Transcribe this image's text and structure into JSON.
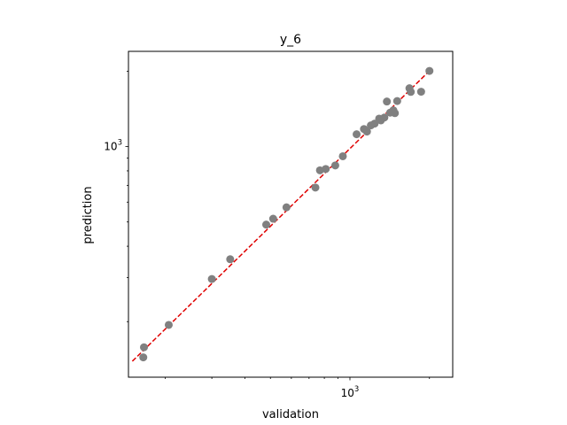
{
  "chart_data": {
    "type": "scatter",
    "title": "y_6",
    "xlabel": "validation",
    "ylabel": "prediction",
    "x_scale": "log",
    "y_scale": "log",
    "xlim": [
      145,
      2450
    ],
    "ylim": [
      120,
      2400
    ],
    "grid": false,
    "x_major_ticks": [
      {
        "value": 1000,
        "label_base": "10",
        "label_exp": "3"
      }
    ],
    "y_major_ticks": [
      {
        "value": 1000,
        "label_base": "10",
        "label_exp": "3"
      }
    ],
    "x_minor_ticks": [
      200,
      300,
      400,
      500,
      600,
      700,
      800,
      900,
      2000
    ],
    "y_minor_ticks": [
      200,
      300,
      400,
      500,
      600,
      700,
      800,
      900,
      2000
    ],
    "marker_color": "#808080",
    "reference_line": {
      "style": "dashed",
      "color": "#e00000",
      "x": [
        150,
        2000
      ],
      "y": [
        139,
        2005
      ]
    },
    "points": [
      {
        "x": 165,
        "y": 144
      },
      {
        "x": 166,
        "y": 158
      },
      {
        "x": 206,
        "y": 194
      },
      {
        "x": 300,
        "y": 296
      },
      {
        "x": 352,
        "y": 355
      },
      {
        "x": 482,
        "y": 488
      },
      {
        "x": 512,
        "y": 515
      },
      {
        "x": 575,
        "y": 572
      },
      {
        "x": 740,
        "y": 686
      },
      {
        "x": 770,
        "y": 804
      },
      {
        "x": 810,
        "y": 814
      },
      {
        "x": 880,
        "y": 841
      },
      {
        "x": 940,
        "y": 915
      },
      {
        "x": 1060,
        "y": 1120
      },
      {
        "x": 1130,
        "y": 1175
      },
      {
        "x": 1160,
        "y": 1148
      },
      {
        "x": 1200,
        "y": 1215
      },
      {
        "x": 1240,
        "y": 1235
      },
      {
        "x": 1290,
        "y": 1293
      },
      {
        "x": 1310,
        "y": 1272
      },
      {
        "x": 1350,
        "y": 1306
      },
      {
        "x": 1380,
        "y": 1513
      },
      {
        "x": 1420,
        "y": 1366
      },
      {
        "x": 1460,
        "y": 1396
      },
      {
        "x": 1480,
        "y": 1360
      },
      {
        "x": 1510,
        "y": 1520
      },
      {
        "x": 1680,
        "y": 1710
      },
      {
        "x": 1700,
        "y": 1653
      },
      {
        "x": 1860,
        "y": 1656
      },
      {
        "x": 2000,
        "y": 2005
      }
    ]
  }
}
